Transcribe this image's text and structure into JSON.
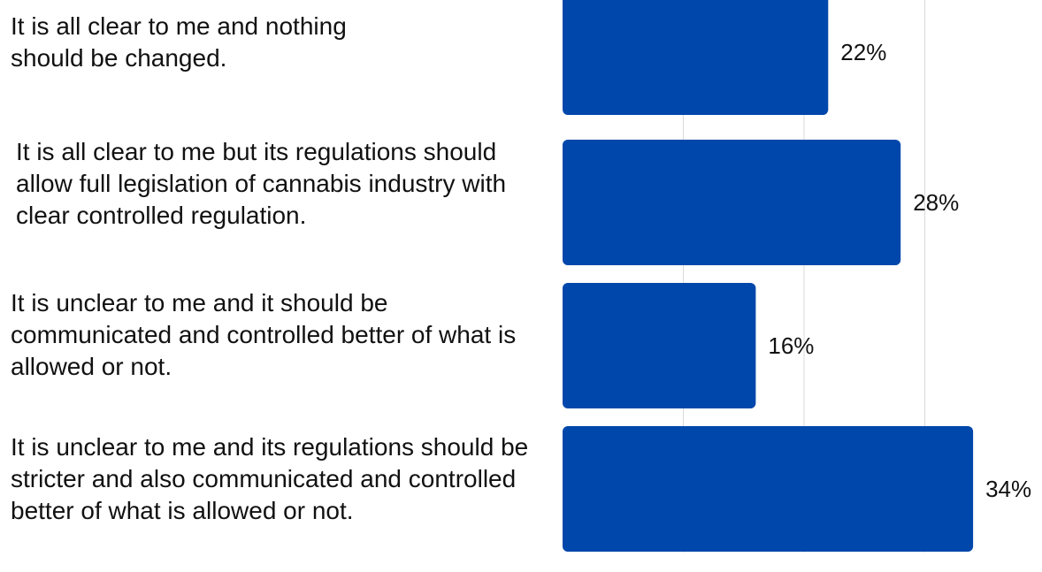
{
  "chart_data": {
    "type": "bar",
    "orientation": "horizontal",
    "categories": [
      "It is all clear to me and nothing should be changed.",
      "It is all clear to me but its regulations should allow full legislation of cannabis industry with clear controlled regulation.",
      "It is unclear to me and it should be communicated and controlled better of what is allowed or not.",
      "It is unclear to me and its regulations should be stricter and also communicated and controlled better of what is allowed or not."
    ],
    "values": [
      22,
      28,
      16,
      34
    ],
    "data_labels": [
      "22%",
      "28%",
      "16%",
      "34%"
    ],
    "xlim": [
      0,
      40
    ],
    "grid": true,
    "bar_color": "#0047AB",
    "grid_color": "#d9d9d9"
  }
}
